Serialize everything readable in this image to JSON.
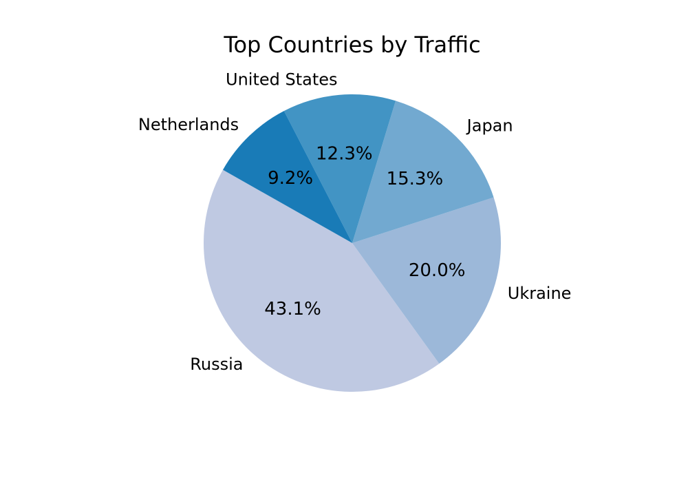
{
  "chart_data": {
    "type": "pie",
    "title": "Top Countries by Traffic",
    "slices": [
      {
        "label": "Russia",
        "value": 43.1,
        "pct_label": "43.1%",
        "color": "#bfc9e2"
      },
      {
        "label": "Ukraine",
        "value": 20.0,
        "pct_label": "20.0%",
        "color": "#9cb8d9"
      },
      {
        "label": "Japan",
        "value": 15.3,
        "pct_label": "15.3%",
        "color": "#72a9d0"
      },
      {
        "label": "United States",
        "value": 12.3,
        "pct_label": "12.3%",
        "color": "#4294c4"
      },
      {
        "label": "Netherlands",
        "value": 9.2,
        "pct_label": "9.2%",
        "color": "#197bb7"
      }
    ],
    "legend": "none"
  }
}
